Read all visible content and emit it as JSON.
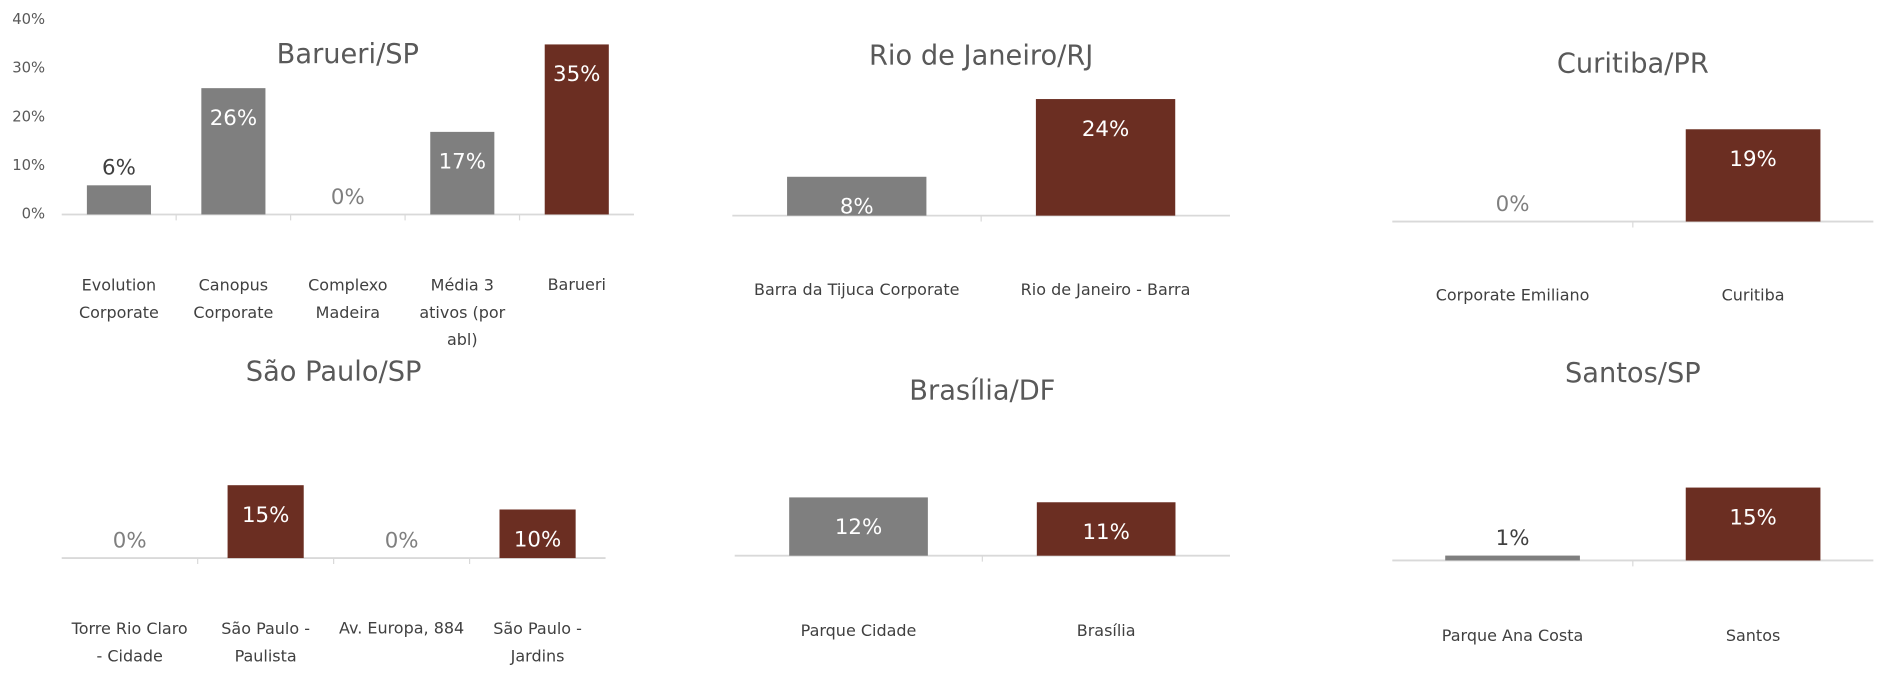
{
  "chart_data": [
    {
      "type": "bar",
      "title": "Barueri/SP",
      "categories": [
        "Evolution Corporate",
        "Canopus Corporate",
        "Complexo Madeira",
        "Média 3 ativos (por abl)",
        "Barueri"
      ],
      "values": [
        6,
        26,
        0,
        17,
        35
      ],
      "value_labels": [
        "6%",
        "26%",
        "0%",
        "17%",
        "35%"
      ],
      "colors": [
        "#7f7f7f",
        "#7f7f7f",
        "#7f7f7f",
        "#7f7f7f",
        "#6b2e22"
      ],
      "ylim": [
        0,
        40
      ],
      "yticks": [
        {
          "value": 0,
          "label": "0%"
        },
        {
          "value": 10,
          "label": "10%"
        },
        {
          "value": 20,
          "label": "20%"
        },
        {
          "value": 30,
          "label": "30%"
        },
        {
          "value": 40,
          "label": "40%"
        }
      ]
    },
    {
      "type": "bar",
      "title": "Rio de Janeiro/RJ",
      "categories": [
        "Barra da Tijuca Corporate",
        "Rio de Janeiro - Barra"
      ],
      "values": [
        8,
        24
      ],
      "value_labels": [
        "8%",
        "24%"
      ],
      "colors": [
        "#7f7f7f",
        "#6b2e22"
      ]
    },
    {
      "type": "bar",
      "title": "Curitiba/PR",
      "categories": [
        "Corporate Emiliano",
        "Curitiba"
      ],
      "values": [
        0,
        19
      ],
      "value_labels": [
        "0%",
        "19%"
      ],
      "colors": [
        "#7f7f7f",
        "#6b2e22"
      ]
    },
    {
      "type": "bar",
      "title": "São Paulo/SP",
      "categories": [
        "Torre Rio Claro - Cidade Matarazzo",
        "São Paulo - Paulista",
        "Av. Europa, 884",
        "São Paulo - Jardins"
      ],
      "values": [
        0,
        15,
        0,
        10
      ],
      "value_labels": [
        "0%",
        "15%",
        "0%",
        "10%"
      ],
      "colors": [
        "#7f7f7f",
        "#6b2e22",
        "#7f7f7f",
        "#6b2e22"
      ]
    },
    {
      "type": "bar",
      "title": "Brasília/DF",
      "categories": [
        "Parque Cidade",
        "Brasília"
      ],
      "values": [
        12,
        11
      ],
      "value_labels": [
        "12%",
        "11%"
      ],
      "colors": [
        "#7f7f7f",
        "#6b2e22"
      ]
    },
    {
      "type": "bar",
      "title": "Santos/SP",
      "categories": [
        "Parque Ana Costa",
        "Santos"
      ],
      "values": [
        1,
        15
      ],
      "value_labels": [
        "1%",
        "15%"
      ],
      "colors": [
        "#7f7f7f",
        "#6b2e22"
      ]
    }
  ]
}
